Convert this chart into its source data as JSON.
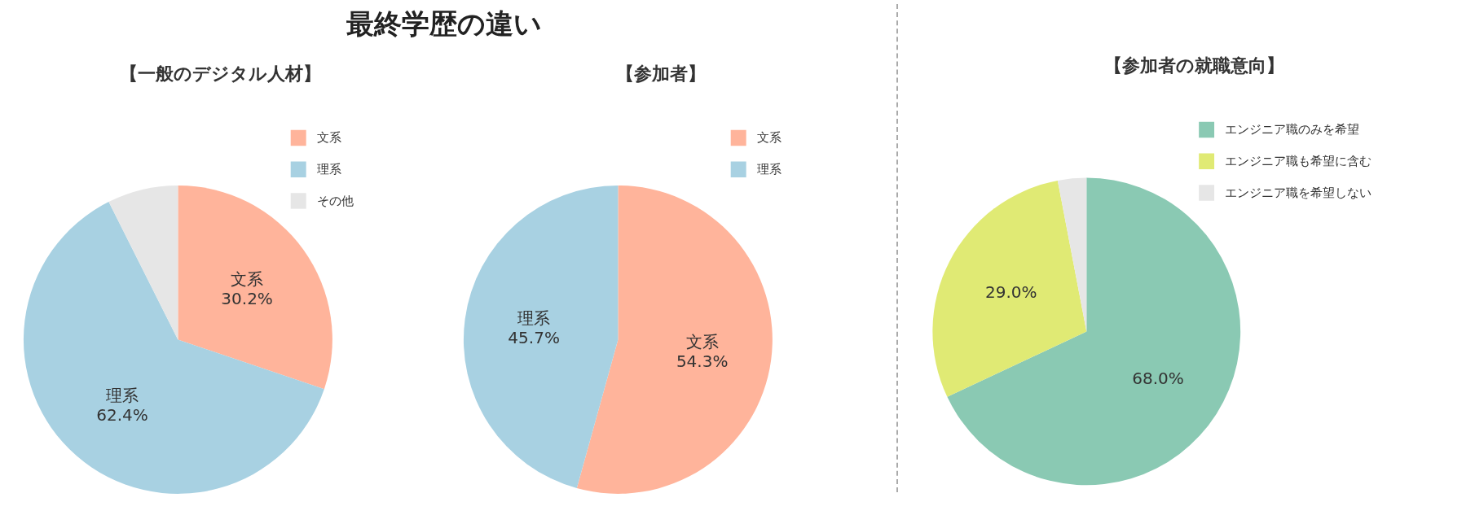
{
  "chart_data": [
    {
      "type": "pie",
      "title": "【一般のデジタル人材】",
      "annotations": [
        "最終学歴の違い"
      ],
      "categories": [
        "文系",
        "理系",
        "その他"
      ],
      "values": [
        30.2,
        62.4,
        7.4
      ],
      "colors": [
        "#ffb49b",
        "#a8d1e2",
        "#e6e6e6"
      ],
      "value_labels": [
        "文系\n30.2%",
        "理系\n62.4%",
        null
      ],
      "legend": "top right"
    },
    {
      "type": "pie",
      "title": "【参加者】",
      "categories": [
        "文系",
        "理系"
      ],
      "values": [
        54.3,
        45.7
      ],
      "colors": [
        "#ffb49b",
        "#a8d1e2"
      ],
      "value_labels": [
        "文系\n54.3%",
        "理系\n45.7%"
      ],
      "legend": "top right"
    },
    {
      "type": "pie",
      "title": "【参加者の就職意向】",
      "categories": [
        "エンジニア職のみを希望",
        "エンジニア職も希望に含む",
        "エンジニア職を希望しない"
      ],
      "values": [
        68.0,
        29.0,
        3.0
      ],
      "colors": [
        "#8ac9b3",
        "#e0ea74",
        "#e6e6e6"
      ],
      "value_labels": [
        "68.0%",
        "29.0%",
        null
      ],
      "legend": "top right"
    }
  ]
}
